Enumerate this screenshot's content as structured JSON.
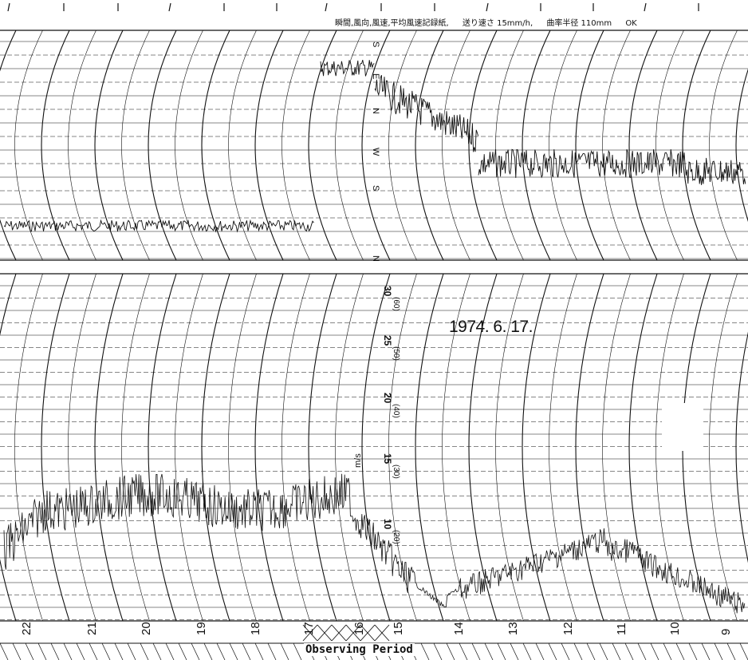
{
  "header": {
    "title": "瞬間,風向,風速,平均風速記録紙,",
    "feed": "送り速さ 15mm/h,",
    "radius": "曲率半径 110mm",
    "ok": "OK"
  },
  "date_label": "1974. 6. 17.",
  "observing_period_label": "Observing Period",
  "direction_labels": [
    "S",
    "E",
    "N",
    "W",
    "S",
    "N"
  ],
  "speed_labels": [
    "30",
    "25",
    "20",
    "15",
    "10"
  ],
  "speed_labels_paren": [
    "(60)",
    "(50)",
    "(40)",
    "(30)",
    "(20)"
  ],
  "unit_label": "m/s",
  "hour_labels": [
    "22",
    "21",
    "20",
    "19",
    "18",
    "17",
    "16",
    "15",
    "14",
    "13",
    "12",
    "11",
    "10",
    "9"
  ],
  "colors": {
    "ink": "#111111",
    "paper": "#ffffff"
  }
}
